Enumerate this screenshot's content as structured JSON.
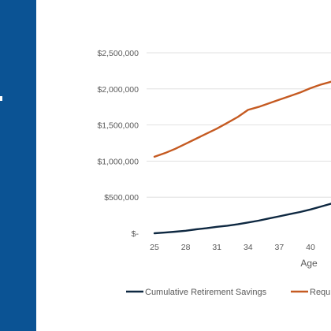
{
  "colors": {
    "panel": "#0b5394",
    "savings_line": "#0e2841",
    "required_line": "#c55a21",
    "grid": "#d9d9d9",
    "text": "#595959"
  },
  "chart_data": {
    "type": "line",
    "title": "",
    "xlabel": "Age",
    "ylabel": "",
    "x": [
      25,
      26,
      27,
      28,
      29,
      30,
      31,
      32,
      33,
      34,
      35,
      36,
      37,
      38,
      39,
      40,
      41,
      42,
      43
    ],
    "x_ticks": [
      25,
      28,
      31,
      34,
      37,
      40
    ],
    "y_ticks": [
      0,
      500000,
      1000000,
      1500000,
      2000000,
      2500000
    ],
    "y_tick_labels": [
      "$-",
      "$500,000",
      "$1,000,000",
      "$1,500,000",
      "$2,000,000",
      "$2,500,000"
    ],
    "ylim": [
      0,
      2500000
    ],
    "grid": true,
    "legend_position": "bottom",
    "series": [
      {
        "name": "Cumulative Retirement Savings",
        "color": "#0e2841",
        "values": [
          0,
          10000,
          22000,
          35000,
          55000,
          70000,
          90000,
          105000,
          125000,
          150000,
          175000,
          205000,
          235000,
          265000,
          295000,
          330000,
          370000,
          410000,
          450000
        ]
      },
      {
        "name": "Requ",
        "color": "#c55a21",
        "values": [
          1060000,
          1110000,
          1170000,
          1240000,
          1310000,
          1380000,
          1450000,
          1530000,
          1610000,
          1710000,
          1750000,
          1800000,
          1850000,
          1900000,
          1950000,
          2010000,
          2060000,
          2100000,
          2140000
        ]
      }
    ]
  }
}
